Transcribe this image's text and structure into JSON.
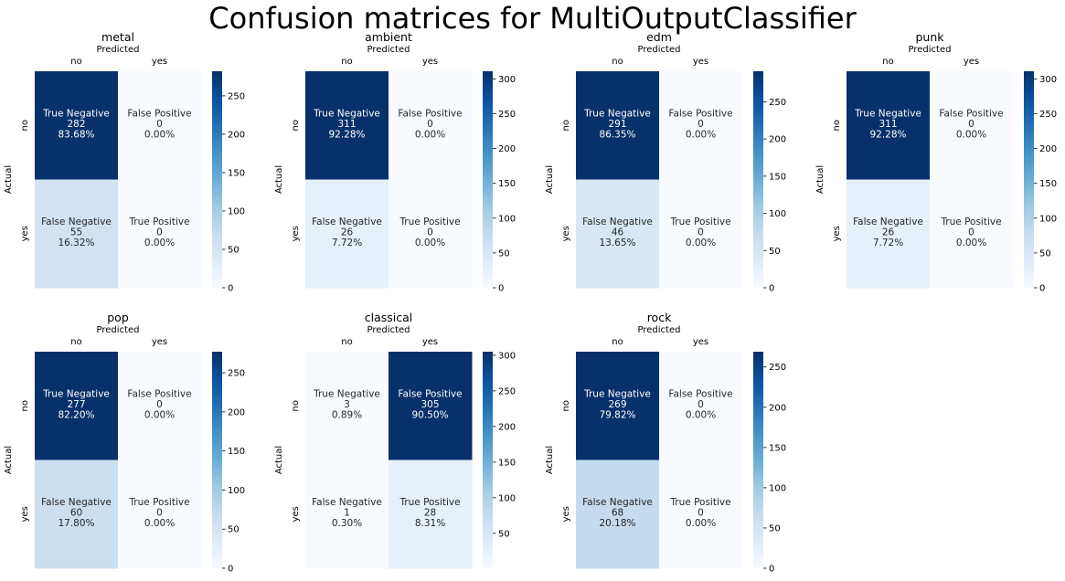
{
  "title": "Confusion matrices for MultiOutputClassifier",
  "common": {
    "xlabel": "Predicted",
    "ylabel": "Actual",
    "tick_labels": [
      "no",
      "yes"
    ],
    "cell_names": [
      "True Negative",
      "False Positive",
      "False Negative",
      "True Positive"
    ],
    "colormap": "Blues",
    "colormap_stops": [
      "#f7fbff",
      "#deebf7",
      "#c6dbef",
      "#9ecae1",
      "#6baed6",
      "#4292c6",
      "#2171b5",
      "#08519c",
      "#08306b"
    ]
  },
  "chart_data": [
    {
      "type": "heatmap",
      "title": "metal",
      "values": [
        [
          282,
          0
        ],
        [
          55,
          0
        ]
      ],
      "percents": [
        "83.68%",
        "0.00%",
        "16.32%",
        "0.00%"
      ],
      "colorbar": {
        "range": [
          0,
          282
        ],
        "ticks": [
          0,
          50,
          100,
          150,
          200,
          250
        ]
      }
    },
    {
      "type": "heatmap",
      "title": "ambient",
      "values": [
        [
          311,
          0
        ],
        [
          26,
          0
        ]
      ],
      "percents": [
        "92.28%",
        "0.00%",
        "7.72%",
        "0.00%"
      ],
      "colorbar": {
        "range": [
          0,
          311
        ],
        "ticks": [
          0,
          50,
          100,
          150,
          200,
          250,
          300
        ]
      }
    },
    {
      "type": "heatmap",
      "title": "edm",
      "values": [
        [
          291,
          0
        ],
        [
          46,
          0
        ]
      ],
      "percents": [
        "86.35%",
        "0.00%",
        "13.65%",
        "0.00%"
      ],
      "colorbar": {
        "range": [
          0,
          291
        ],
        "ticks": [
          0,
          50,
          100,
          150,
          200,
          250
        ]
      }
    },
    {
      "type": "heatmap",
      "title": "punk",
      "values": [
        [
          311,
          0
        ],
        [
          26,
          0
        ]
      ],
      "percents": [
        "92.28%",
        "0.00%",
        "7.72%",
        "0.00%"
      ],
      "colorbar": {
        "range": [
          0,
          311
        ],
        "ticks": [
          0,
          50,
          100,
          150,
          200,
          250,
          300
        ]
      }
    },
    {
      "type": "heatmap",
      "title": "pop",
      "values": [
        [
          277,
          0
        ],
        [
          60,
          0
        ]
      ],
      "percents": [
        "82.20%",
        "0.00%",
        "17.80%",
        "0.00%"
      ],
      "colorbar": {
        "range": [
          0,
          277
        ],
        "ticks": [
          0,
          50,
          100,
          150,
          200,
          250
        ]
      }
    },
    {
      "type": "heatmap",
      "title": "classical",
      "values": [
        [
          3,
          305
        ],
        [
          1,
          28
        ]
      ],
      "percents": [
        "0.89%",
        "90.50%",
        "0.30%",
        "8.31%"
      ],
      "colorbar": {
        "range": [
          1,
          305
        ],
        "ticks": [
          50,
          100,
          150,
          200,
          250,
          300
        ]
      }
    },
    {
      "type": "heatmap",
      "title": "rock",
      "values": [
        [
          269,
          0
        ],
        [
          68,
          0
        ]
      ],
      "percents": [
        "79.82%",
        "0.00%",
        "20.18%",
        "0.00%"
      ],
      "colorbar": {
        "range": [
          0,
          269
        ],
        "ticks": [
          0,
          50,
          100,
          150,
          200,
          250
        ]
      }
    }
  ]
}
